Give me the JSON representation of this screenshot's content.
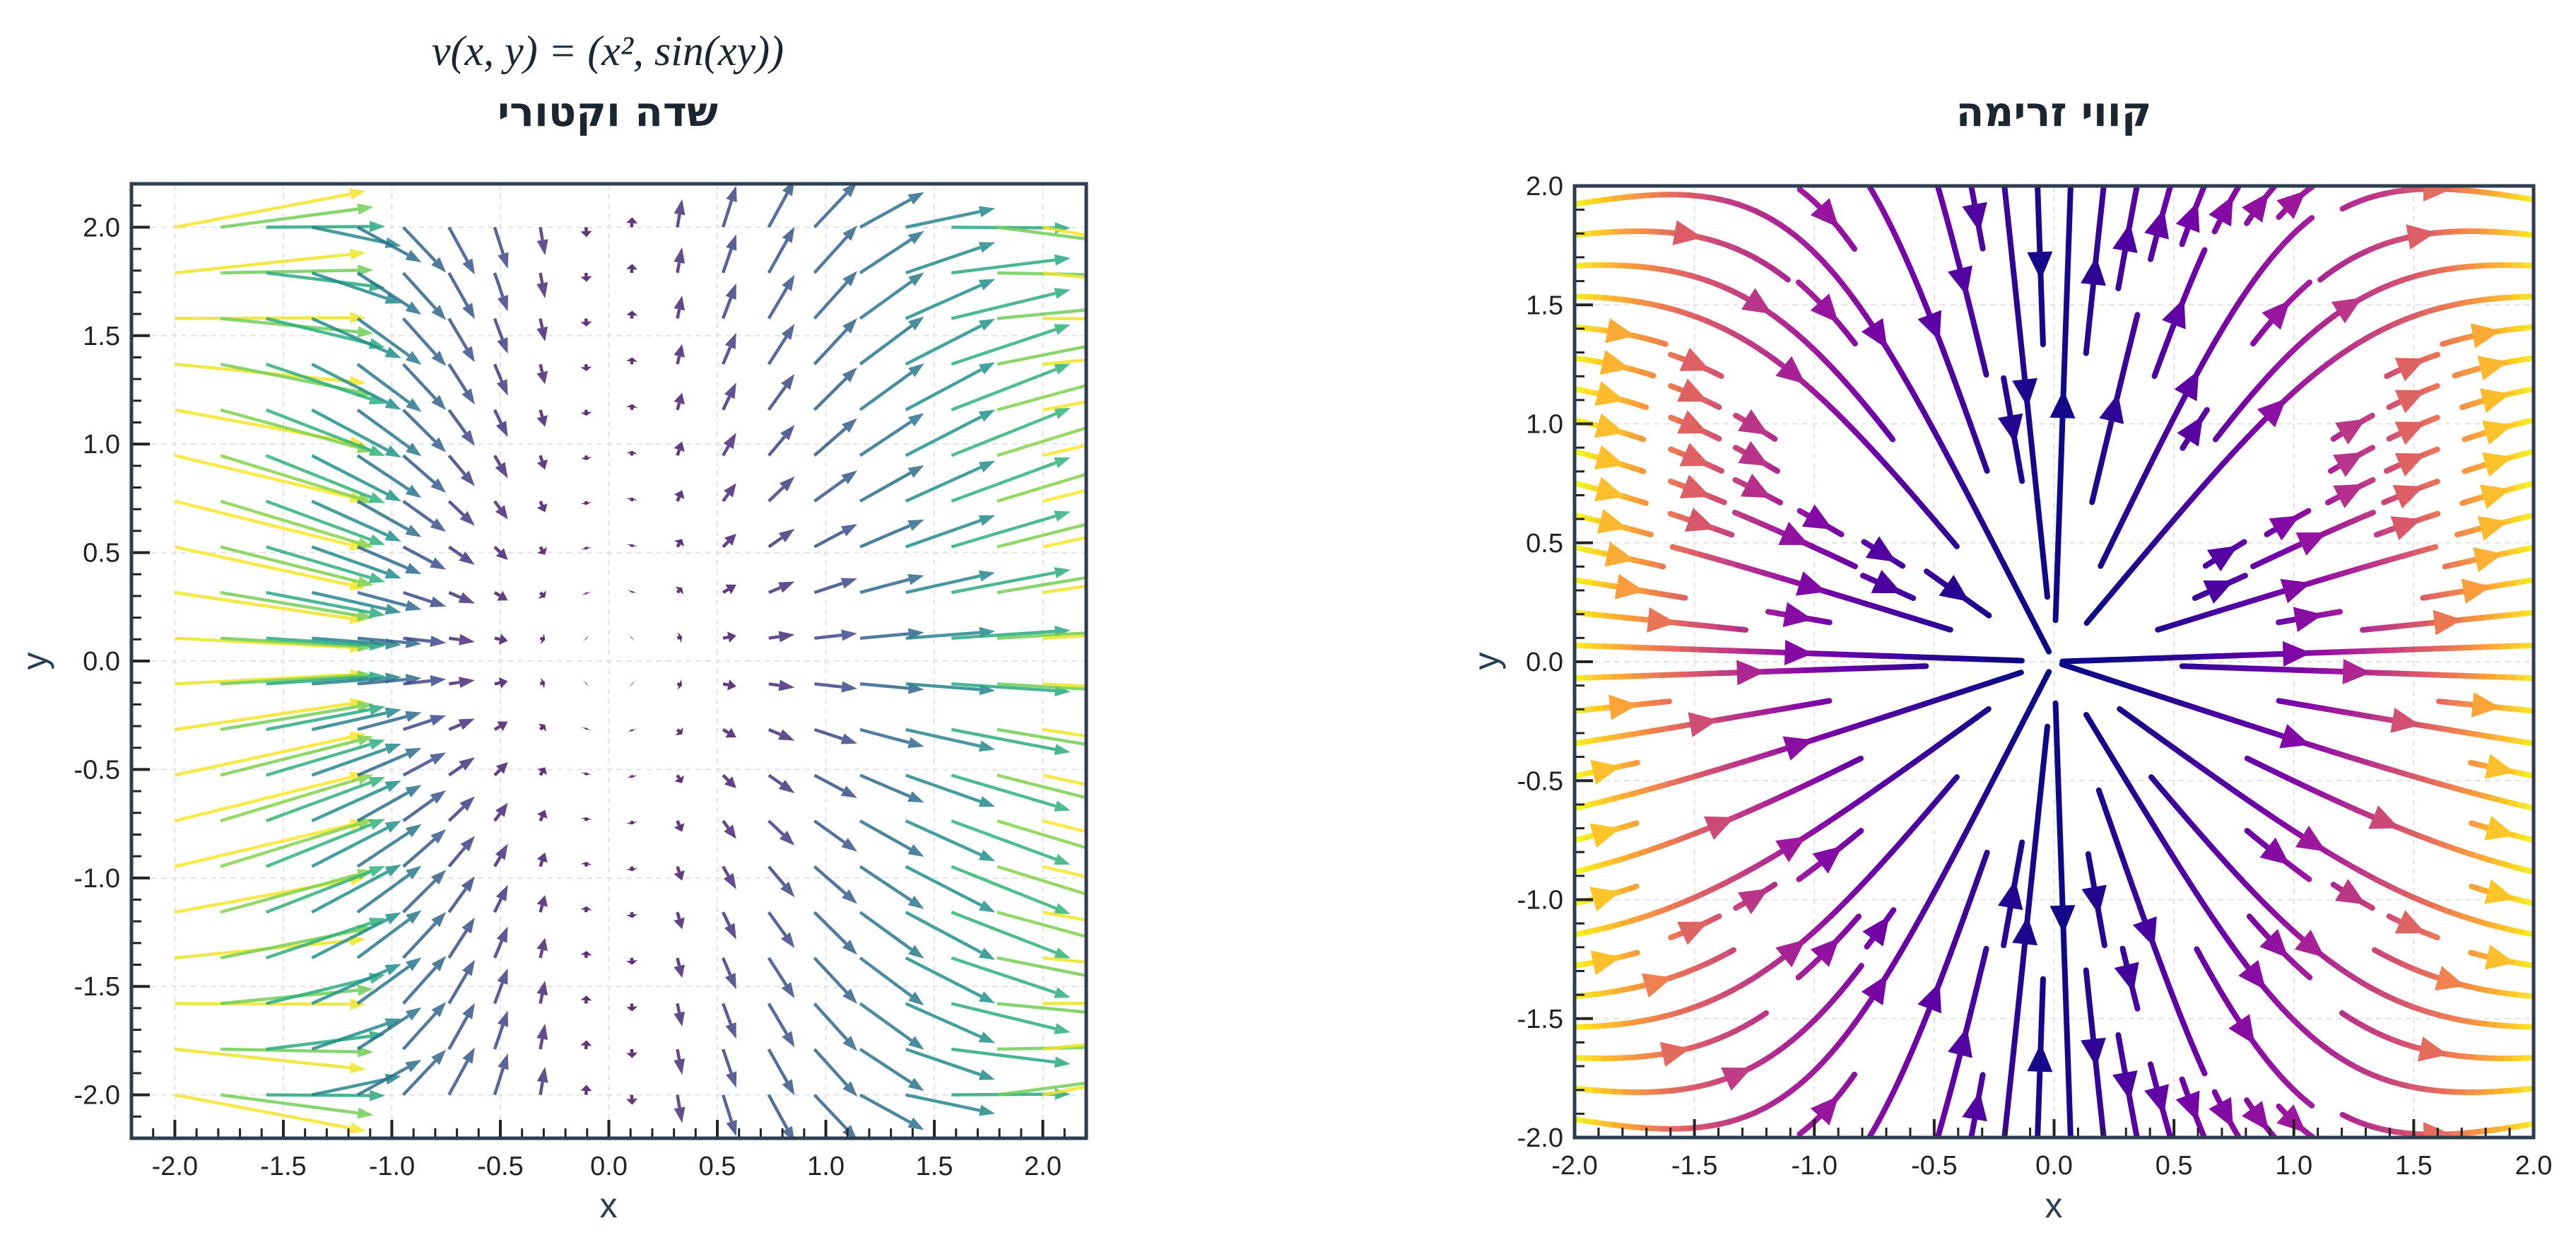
{
  "chart_data": [
    {
      "type": "quiver",
      "title": "שדה וקטורי",
      "subtitle": "v(x, y) = (x², sin(xy))",
      "field": {
        "u": "x^2",
        "v": "sin(x*y)"
      },
      "grid": {
        "x_start": -2.0,
        "x_end": 2.0,
        "y_start": -2.0,
        "y_end": 2.0,
        "count": 20
      },
      "colormap": "viridis",
      "color_by": "magnitude",
      "xlabel": "x",
      "ylabel": "y",
      "xlim": [
        -2.2,
        2.2
      ],
      "ylim": [
        -2.2,
        2.2
      ],
      "xticks": [
        "-2.0",
        "-1.5",
        "-1.0",
        "-0.5",
        "0.0",
        "0.5",
        "1.0",
        "1.5",
        "2.0"
      ],
      "yticks": [
        "-2.0",
        "-1.5",
        "-1.0",
        "-0.5",
        "0.0",
        "0.5",
        "1.0",
        "1.5",
        "2.0"
      ],
      "grid_lines": true
    },
    {
      "type": "streamplot",
      "title": "קווי זרימה",
      "field": {
        "u": "x^2",
        "v": "sin(x*y)"
      },
      "colormap": "plasma",
      "color_by": "speed",
      "xlabel": "x",
      "ylabel": "y",
      "xlim": [
        -2.0,
        2.0
      ],
      "ylim": [
        -2.0,
        2.0
      ],
      "xticks": [
        "-2.0",
        "-1.5",
        "-1.0",
        "-0.5",
        "0.0",
        "0.5",
        "1.0",
        "1.5",
        "2.0"
      ],
      "yticks": [
        "-2.0",
        "-1.5",
        "-1.0",
        "-0.5",
        "0.0",
        "0.5",
        "1.0",
        "1.5",
        "2.0"
      ],
      "grid_lines": true
    }
  ],
  "colors": {
    "spine": "#2d3e50",
    "grid": "#e3e3e3",
    "text": "#1c2630"
  }
}
